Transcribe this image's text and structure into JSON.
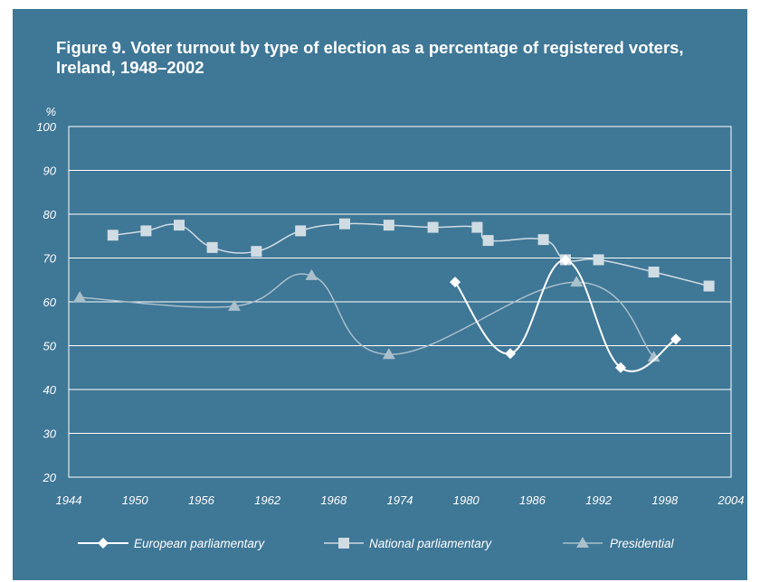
{
  "chart_data": {
    "type": "line",
    "title": "Figure 9. Voter turnout by type of election as a percentage of registered voters, Ireland, 1948–2002",
    "ylabel": "%",
    "xlabel": "",
    "xlim": [
      1944,
      2004
    ],
    "ylim": [
      20,
      100
    ],
    "x_ticks": [
      "1944",
      "1950",
      "1956",
      "1962",
      "1968",
      "1974",
      "1980",
      "1986",
      "1992",
      "1998",
      "2004"
    ],
    "y_ticks": [
      "20",
      "30",
      "40",
      "50",
      "60",
      "70",
      "80",
      "90",
      "100"
    ],
    "grid": "horizontal",
    "legend_position": "bottom",
    "series": [
      {
        "name": "European parliamentary",
        "marker": "diamond",
        "color": "#ffffff",
        "x": [
          1979,
          1984,
          1989,
          1994,
          1999
        ],
        "y": [
          64.5,
          48.2,
          69.5,
          45.0,
          51.5
        ]
      },
      {
        "name": "National parliamentary",
        "marker": "square",
        "color": "#d0dce3",
        "x": [
          1948,
          1951,
          1954,
          1957,
          1961,
          1965,
          1969,
          1973,
          1977,
          1981,
          1982,
          1987,
          1989,
          1992,
          1997,
          2002
        ],
        "y": [
          75.2,
          76.2,
          77.5,
          72.4,
          71.5,
          76.2,
          77.8,
          77.5,
          77.0,
          77.0,
          74.0,
          74.2,
          69.6,
          69.6,
          66.8,
          63.6
        ]
      },
      {
        "name": "Presidential",
        "marker": "triangle",
        "color": "#a9bfcb",
        "x": [
          1945,
          1959,
          1966,
          1973,
          1990,
          1997
        ],
        "y": [
          61.0,
          59.0,
          66.0,
          48.0,
          64.5,
          47.4
        ]
      }
    ]
  }
}
